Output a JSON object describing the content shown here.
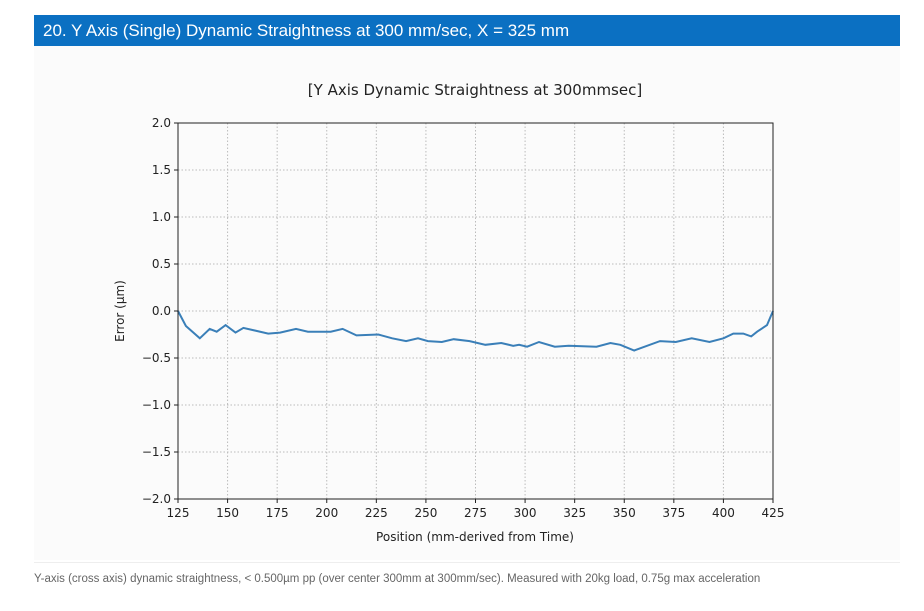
{
  "header": {
    "title": "20. Y Axis (Single) Dynamic Straightness at 300 mm/sec, X = 325 mm"
  },
  "caption": "Y-axis (cross axis) dynamic straightness, < 0.500µm pp (over center 300mm at 300mm/sec). Measured with 20kg load, 0.75g max acceleration",
  "colors": {
    "header": "#0b70c2",
    "line": "#3a7fb8"
  },
  "chart_data": {
    "type": "line",
    "title": "[Y Axis Dynamic Straightness at 300mmsec]",
    "xlabel": "Position (mm-derived from Time)",
    "ylabel": "Error (µm)",
    "xlim": [
      125,
      425
    ],
    "ylim": [
      -2.0,
      2.0
    ],
    "xticks": [
      "125",
      "150",
      "175",
      "200",
      "225",
      "250",
      "275",
      "300",
      "325",
      "350",
      "375",
      "400",
      "425"
    ],
    "yticks": [
      "2.0",
      "1.5",
      "1.0",
      "0.5",
      "0.0",
      "−0.5",
      "−1.0",
      "−1.5",
      "−2.0"
    ],
    "grid": true,
    "x": [
      125,
      129,
      136,
      141,
      144.5,
      149,
      154,
      158,
      170.5,
      176.5,
      184.5,
      190.5,
      202,
      208,
      215,
      226,
      233,
      240,
      246,
      251,
      258,
      264,
      272,
      280,
      288,
      294,
      297,
      301,
      307,
      315,
      322,
      336,
      343,
      348,
      355,
      368,
      376,
      384,
      393,
      400,
      405,
      410,
      414,
      417,
      422,
      425
    ],
    "y": [
      0,
      -0.16,
      -0.29,
      -0.19,
      -0.22,
      -0.15,
      -0.23,
      -0.18,
      -0.24,
      -0.23,
      -0.19,
      -0.22,
      -0.22,
      -0.19,
      -0.26,
      -0.25,
      -0.29,
      -0.32,
      -0.29,
      -0.32,
      -0.33,
      -0.3,
      -0.32,
      -0.36,
      -0.34,
      -0.37,
      -0.36,
      -0.38,
      -0.33,
      -0.38,
      -0.37,
      -0.38,
      -0.34,
      -0.36,
      -0.42,
      -0.32,
      -0.33,
      -0.29,
      -0.33,
      -0.29,
      -0.24,
      -0.24,
      -0.27,
      -0.22,
      -0.15,
      0
    ]
  }
}
